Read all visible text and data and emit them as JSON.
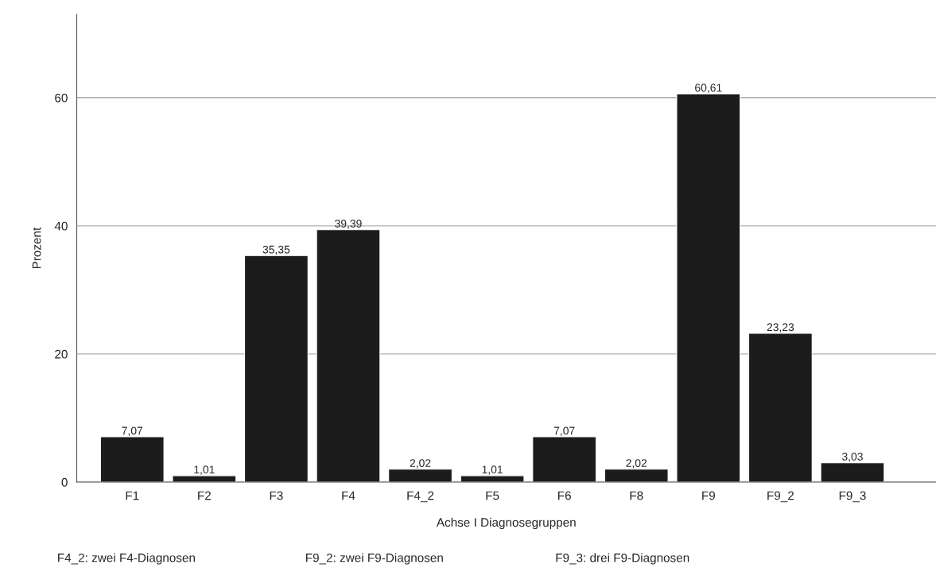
{
  "chart_data": {
    "type": "bar",
    "xlabel": "Achse I Diagnosegruppen",
    "ylabel": "Prozent",
    "categories": [
      "F1",
      "F2",
      "F3",
      "F4",
      "F4_2",
      "F5",
      "F6",
      "F8",
      "F9",
      "F9_2",
      "F9_3"
    ],
    "values": [
      7.07,
      1.01,
      35.35,
      39.39,
      2.02,
      1.01,
      7.07,
      2.02,
      60.61,
      23.23,
      3.03
    ],
    "value_labels": [
      "7,07",
      "1,01",
      "35,35",
      "39,39",
      "2,02",
      "1,01",
      "7,07",
      "2,02",
      "60,61",
      "23,23",
      "3,03"
    ],
    "color": "#1c1c1c",
    "ylim": [
      0,
      73
    ],
    "yticks": [
      0,
      20,
      40,
      60
    ],
    "grid": "y",
    "annotations": [
      "F4_2: zwei F4-Diagnosen",
      "F9_2: zwei F9-Diagnosen",
      "F9_3: drei F9-Diagnosen"
    ]
  }
}
